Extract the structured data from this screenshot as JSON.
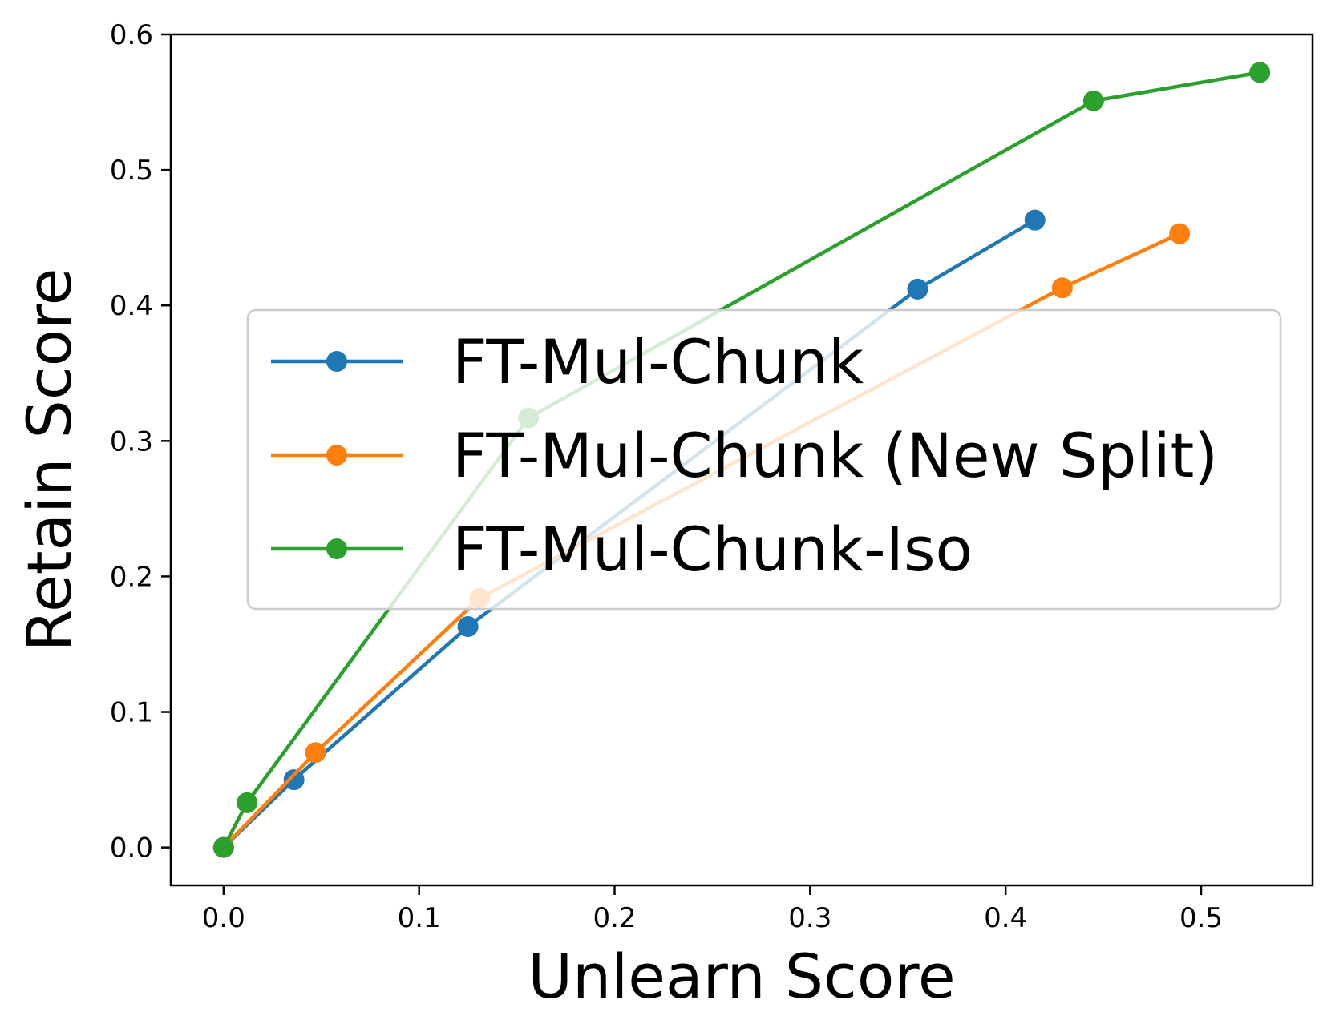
{
  "chart_data": {
    "type": "line",
    "xlabel": "Unlearn Score",
    "ylabel": "Retain Score",
    "xlim": [
      -0.027,
      0.557
    ],
    "ylim": [
      -0.028,
      0.6
    ],
    "xticks": [
      0.0,
      0.1,
      0.2,
      0.3,
      0.4,
      0.5
    ],
    "xtick_labels": [
      "0.0",
      "0.1",
      "0.2",
      "0.3",
      "0.4",
      "0.5"
    ],
    "yticks": [
      0.0,
      0.1,
      0.2,
      0.3,
      0.4,
      0.5,
      0.6
    ],
    "ytick_labels": [
      "0.0",
      "0.1",
      "0.2",
      "0.3",
      "0.4",
      "0.5",
      "0.6"
    ],
    "grid": false,
    "legend_position": "center-right",
    "series": [
      {
        "name": "FT-Mul-Chunk",
        "color": "#1f77b4",
        "x": [
          0.0,
          0.036,
          0.125,
          0.355,
          0.415
        ],
        "y": [
          0.0,
          0.05,
          0.163,
          0.412,
          0.463
        ]
      },
      {
        "name": "FT-Mul-Chunk (New Split)",
        "color": "#ff7f0e",
        "x": [
          0.0,
          0.047,
          0.131,
          0.429,
          0.489
        ],
        "y": [
          0.0,
          0.07,
          0.184,
          0.413,
          0.453
        ]
      },
      {
        "name": "FT-Mul-Chunk-Iso",
        "color": "#2ca02c",
        "x": [
          0.0,
          0.012,
          0.156,
          0.445,
          0.53
        ],
        "y": [
          0.0,
          0.033,
          0.317,
          0.551,
          0.572
        ]
      }
    ]
  }
}
